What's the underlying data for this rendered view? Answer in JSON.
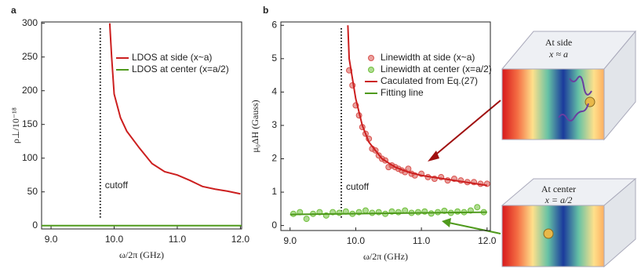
{
  "chart_data": [
    {
      "type": "line",
      "panel_label": "a",
      "xlabel": "ω/2π (GHz)",
      "ylabel": "ρ⊥/10⁻¹⁸",
      "xlim": [
        8.85,
        12.02
      ],
      "ylim": [
        -5,
        302
      ],
      "xticks": [
        {
          "value": 9.0,
          "label": "9.0"
        },
        {
          "value": 10.0,
          "label": "10.0"
        },
        {
          "value": 11.0,
          "label": "11.0"
        },
        {
          "value": 12.0,
          "label": "12.0"
        }
      ],
      "yticks": [
        0,
        50,
        100,
        150,
        200,
        250,
        300
      ],
      "vlines": [
        {
          "x": 9.78,
          "label": "cutoff"
        }
      ],
      "legend": "upper right",
      "series": [
        {
          "name": "LDOS at side (x~a)",
          "color": "#cc1f1f",
          "kind": "line",
          "x": [
            9.93,
            9.96,
            10.0,
            10.1,
            10.2,
            10.4,
            10.6,
            10.8,
            11.0,
            11.2,
            11.4,
            11.6,
            11.8,
            12.0
          ],
          "values": [
            300,
            250,
            195,
            160,
            140,
            115,
            92,
            80,
            75,
            67,
            58,
            54,
            51,
            47
          ]
        },
        {
          "name": "LDOS at center (x=a/2)",
          "color": "#4f9a1c",
          "kind": "line",
          "x": [
            8.85,
            12.02
          ],
          "values": [
            0,
            0
          ]
        }
      ]
    },
    {
      "type": "scatter",
      "panel_label": "b",
      "xlabel": "ω/2π (GHz)",
      "ylabel": "μ₀ΔH (Gauss)",
      "xlim": [
        8.86,
        12.05
      ],
      "ylim": [
        -0.15,
        6.1
      ],
      "xticks": [
        {
          "value": 9.0,
          "label": "9.0"
        },
        {
          "value": 10.0,
          "label": "10.0"
        },
        {
          "value": 11.0,
          "label": "11.0"
        },
        {
          "value": 12.0,
          "label": "12.0"
        }
      ],
      "yticks": [
        0,
        1,
        2,
        3,
        4,
        5,
        6
      ],
      "vlines": [
        {
          "x": 9.78,
          "label": "cutoff"
        }
      ],
      "legend": "upper right",
      "series": [
        {
          "name": "Linewidth at side (x~a)",
          "color": "#d9534f",
          "kind": "scatter",
          "x": [
            9.9,
            9.95,
            10.0,
            10.05,
            10.1,
            10.15,
            10.2,
            10.25,
            10.3,
            10.35,
            10.4,
            10.45,
            10.5,
            10.55,
            10.6,
            10.65,
            10.7,
            10.75,
            10.8,
            10.85,
            10.9,
            11.0,
            11.1,
            11.2,
            11.3,
            11.4,
            11.5,
            11.6,
            11.7,
            11.8,
            11.9,
            12.0
          ],
          "values": [
            4.65,
            4.2,
            3.6,
            3.3,
            2.95,
            2.75,
            2.6,
            2.3,
            2.25,
            2.1,
            2.0,
            1.95,
            1.75,
            1.8,
            1.75,
            1.7,
            1.65,
            1.6,
            1.7,
            1.55,
            1.5,
            1.55,
            1.45,
            1.4,
            1.45,
            1.35,
            1.4,
            1.35,
            1.3,
            1.3,
            1.25,
            1.25
          ]
        },
        {
          "name": "Linewidth at center (x=a/2)",
          "color": "#6fbf3a",
          "kind": "scatter",
          "x": [
            9.05,
            9.15,
            9.25,
            9.35,
            9.45,
            9.55,
            9.65,
            9.75,
            9.85,
            9.95,
            10.05,
            10.15,
            10.25,
            10.35,
            10.45,
            10.55,
            10.65,
            10.75,
            10.85,
            10.95,
            11.05,
            11.15,
            11.25,
            11.35,
            11.45,
            11.55,
            11.65,
            11.75,
            11.85,
            11.95
          ],
          "values": [
            0.35,
            0.4,
            0.2,
            0.35,
            0.4,
            0.3,
            0.4,
            0.38,
            0.42,
            0.35,
            0.4,
            0.45,
            0.38,
            0.4,
            0.35,
            0.42,
            0.4,
            0.45,
            0.38,
            0.4,
            0.42,
            0.36,
            0.4,
            0.44,
            0.38,
            0.42,
            0.4,
            0.45,
            0.55,
            0.4
          ]
        },
        {
          "name": "Caculated from Eq.(27)",
          "color": "#cc1f1f",
          "kind": "line",
          "x": [
            9.88,
            9.9,
            10.0,
            10.1,
            10.2,
            10.4,
            10.6,
            10.8,
            11.0,
            11.5,
            12.0
          ],
          "values": [
            6,
            5.0,
            3.8,
            3.0,
            2.5,
            2.0,
            1.75,
            1.6,
            1.5,
            1.35,
            1.2
          ]
        },
        {
          "name": "Fitting line",
          "color": "#4f9a1c",
          "kind": "line",
          "x": [
            9.0,
            12.0
          ],
          "values": [
            0.33,
            0.4
          ]
        }
      ]
    }
  ],
  "insets": [
    {
      "title": "At side",
      "formula": "x ≈ a"
    },
    {
      "title": "At center",
      "formula": "x = a/2"
    }
  ]
}
